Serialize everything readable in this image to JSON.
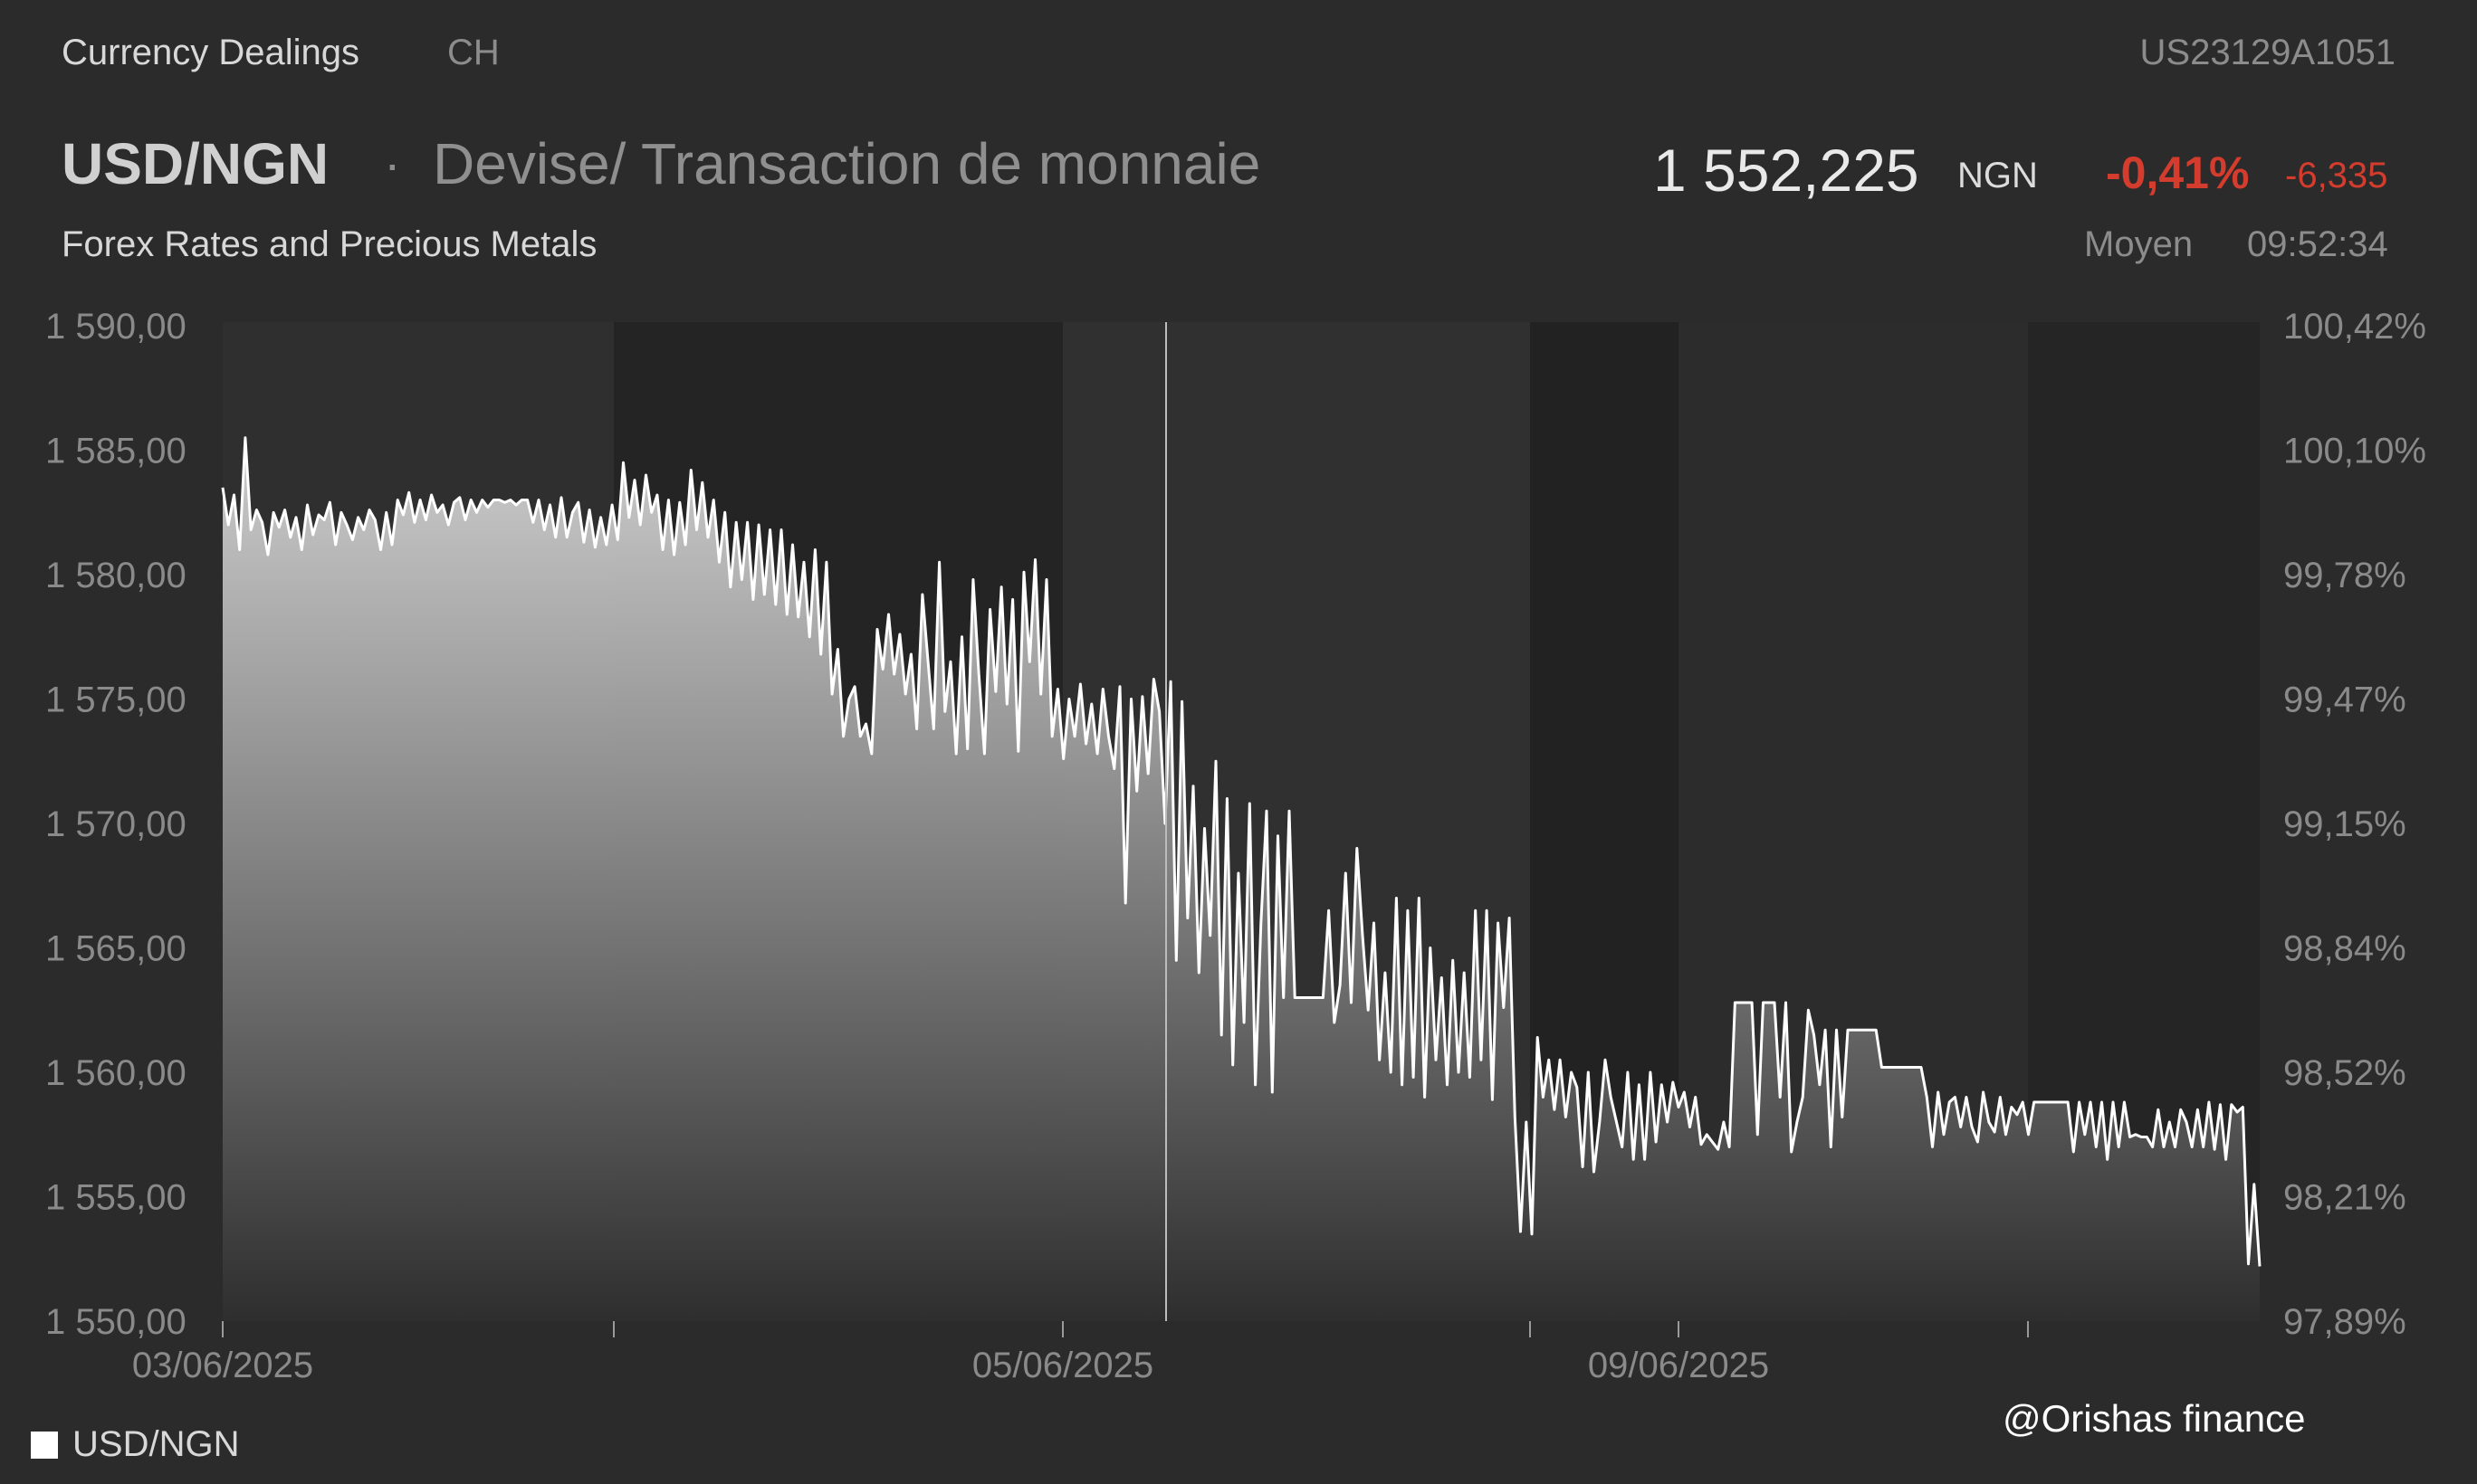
{
  "header": {
    "category": "Currency Dealings",
    "exchange": "CH",
    "isin": "US23129A1051",
    "pair": "USD/NGN",
    "separator": "·",
    "description": "Devise/ Transaction de monnaie",
    "price": "1 552,225",
    "currency": "NGN",
    "change_pct": "-0,41%",
    "change_abs": "-6,335",
    "subtitle": "Forex Rates and Precious Metals",
    "price_type": "Moyen",
    "time": "09:52:34"
  },
  "legend": {
    "label": "USD/NGN"
  },
  "watermark": "@Orishas finance",
  "colors": {
    "background": "#2b2b2b",
    "line": "#ffffff",
    "negative": "#d43c2e"
  },
  "chart_data": {
    "type": "area",
    "series": [
      {
        "name": "USD/NGN",
        "values": [
          1583.5,
          1582.0,
          1583.2,
          1581.0,
          1585.5,
          1581.8,
          1582.6,
          1582.1,
          1580.8,
          1582.5,
          1581.9,
          1582.6,
          1581.5,
          1582.3,
          1581.0,
          1582.8,
          1581.6,
          1582.4,
          1582.2,
          1582.9,
          1581.2,
          1582.5,
          1582.0,
          1581.4,
          1582.3,
          1581.8,
          1582.6,
          1582.2,
          1581.0,
          1582.5,
          1581.2,
          1583.0,
          1582.4,
          1583.3,
          1582.1,
          1583.0,
          1582.2,
          1583.2,
          1582.5,
          1582.8,
          1582.0,
          1582.9,
          1583.1,
          1582.2,
          1583.0,
          1582.5,
          1583.0,
          1582.7,
          1583.0,
          1583.0,
          1582.9,
          1583.0,
          1582.8,
          1583.0,
          1583.0,
          1582.1,
          1583.0,
          1581.8,
          1582.8,
          1581.5,
          1583.1,
          1581.5,
          1582.5,
          1582.9,
          1581.3,
          1582.6,
          1581.1,
          1582.3,
          1581.2,
          1582.8,
          1581.4,
          1584.5,
          1582.3,
          1583.8,
          1582.0,
          1584.0,
          1582.5,
          1583.2,
          1581.0,
          1583.0,
          1580.8,
          1582.9,
          1581.2,
          1584.2,
          1581.8,
          1583.7,
          1581.5,
          1583.0,
          1580.5,
          1582.5,
          1579.5,
          1582.1,
          1579.8,
          1582.1,
          1579.0,
          1582.0,
          1579.2,
          1581.8,
          1578.8,
          1581.8,
          1578.4,
          1581.2,
          1578.3,
          1580.5,
          1577.5,
          1581.0,
          1576.8,
          1580.5,
          1575.2,
          1577.0,
          1573.5,
          1575.0,
          1575.5,
          1573.5,
          1574.0,
          1572.8,
          1577.8,
          1576.2,
          1578.4,
          1576.0,
          1577.6,
          1575.2,
          1576.8,
          1573.8,
          1579.2,
          1576.5,
          1573.8,
          1580.5,
          1574.5,
          1576.5,
          1572.8,
          1577.5,
          1573.0,
          1579.8,
          1576.0,
          1572.8,
          1578.6,
          1575.3,
          1579.5,
          1574.8,
          1579.0,
          1572.9,
          1580.1,
          1576.5,
          1580.6,
          1575.2,
          1579.8,
          1573.5,
          1575.4,
          1572.6,
          1575.0,
          1573.5,
          1575.6,
          1573.2,
          1574.8,
          1572.8,
          1575.4,
          1573.5,
          1572.2,
          1575.5,
          1566.8,
          1575.0,
          1571.3,
          1575.1,
          1572.0,
          1575.8,
          1574.5,
          1570.0,
          1575.7,
          1564.5,
          1574.9,
          1566.2,
          1571.5,
          1564.0,
          1569.8,
          1565.5,
          1572.5,
          1561.5,
          1571.0,
          1560.3,
          1568.0,
          1562.0,
          1570.8,
          1559.5,
          1566.0,
          1570.5,
          1559.2,
          1569.5,
          1563.0,
          1570.5,
          1563.0,
          1563.0,
          1563.0,
          1563.0,
          1563.0,
          1563.0,
          1566.5,
          1562.0,
          1563.5,
          1568.0,
          1562.8,
          1569.0,
          1565.5,
          1562.5,
          1566.0,
          1560.5,
          1564.0,
          1560.0,
          1567.0,
          1559.5,
          1566.5,
          1559.8,
          1567.0,
          1559.0,
          1565.0,
          1560.5,
          1563.8,
          1559.5,
          1564.5,
          1560.0,
          1564.0,
          1559.8,
          1566.5,
          1560.5,
          1566.5,
          1558.9,
          1566.0,
          1562.6,
          1566.2,
          1558.2,
          1553.6,
          1558.0,
          1553.5,
          1561.4,
          1559.0,
          1560.5,
          1558.5,
          1560.5,
          1558.2,
          1560.0,
          1559.4,
          1556.2,
          1560.0,
          1556.0,
          1558.0,
          1560.5,
          1559.0,
          1558.0,
          1557.0,
          1560.0,
          1556.5,
          1559.5,
          1556.5,
          1560.0,
          1557.2,
          1559.5,
          1558.0,
          1559.6,
          1558.6,
          1559.2,
          1557.8,
          1559.0,
          1557.1,
          1557.5,
          1557.2,
          1556.9,
          1558.0,
          1557.0,
          1562.8,
          1562.8,
          1562.8,
          1562.8,
          1557.5,
          1562.8,
          1562.8,
          1562.8,
          1559.0,
          1562.8,
          1556.8,
          1558.0,
          1559.0,
          1562.5,
          1561.5,
          1559.5,
          1561.7,
          1557.0,
          1561.7,
          1558.2,
          1561.7,
          1561.7,
          1561.7,
          1561.7,
          1561.7,
          1561.7,
          1560.2,
          1560.2,
          1560.2,
          1560.2,
          1560.2,
          1560.2,
          1560.2,
          1560.2,
          1559.0,
          1557.0,
          1559.2,
          1557.5,
          1558.8,
          1559.0,
          1557.8,
          1559.0,
          1557.8,
          1557.2,
          1559.2,
          1558.0,
          1557.6,
          1559.0,
          1557.5,
          1558.6,
          1558.3,
          1558.8,
          1557.5,
          1558.8,
          1558.8,
          1558.8,
          1558.8,
          1558.8,
          1558.8,
          1558.8,
          1556.8,
          1558.8,
          1557.5,
          1558.8,
          1557.0,
          1558.8,
          1556.5,
          1558.8,
          1557.0,
          1558.8,
          1557.4,
          1557.5,
          1557.4,
          1557.4,
          1557.0,
          1558.5,
          1557.0,
          1558.0,
          1557.0,
          1558.5,
          1558.0,
          1557.0,
          1558.5,
          1557.0,
          1558.8,
          1556.9,
          1558.7,
          1556.5,
          1558.7,
          1558.4,
          1558.6,
          1552.3,
          1555.5,
          1552.2
        ]
      }
    ],
    "ylim": [
      1550,
      1590
    ],
    "y_ticks": [
      "1 590,00",
      "1 585,00",
      "1 580,00",
      "1 575,00",
      "1 570,00",
      "1 565,00",
      "1 560,00",
      "1 555,00",
      "1 550,00"
    ],
    "y2_ticks": [
      "100,42%",
      "100,10%",
      "99,78%",
      "99,47%",
      "99,15%",
      "98,84%",
      "98,52%",
      "98,21%",
      "97,89%"
    ],
    "x_labels": [
      "03/06/2025",
      "05/06/2025",
      "09/06/2025"
    ],
    "legend_position": "bottom-left",
    "grid": false
  }
}
